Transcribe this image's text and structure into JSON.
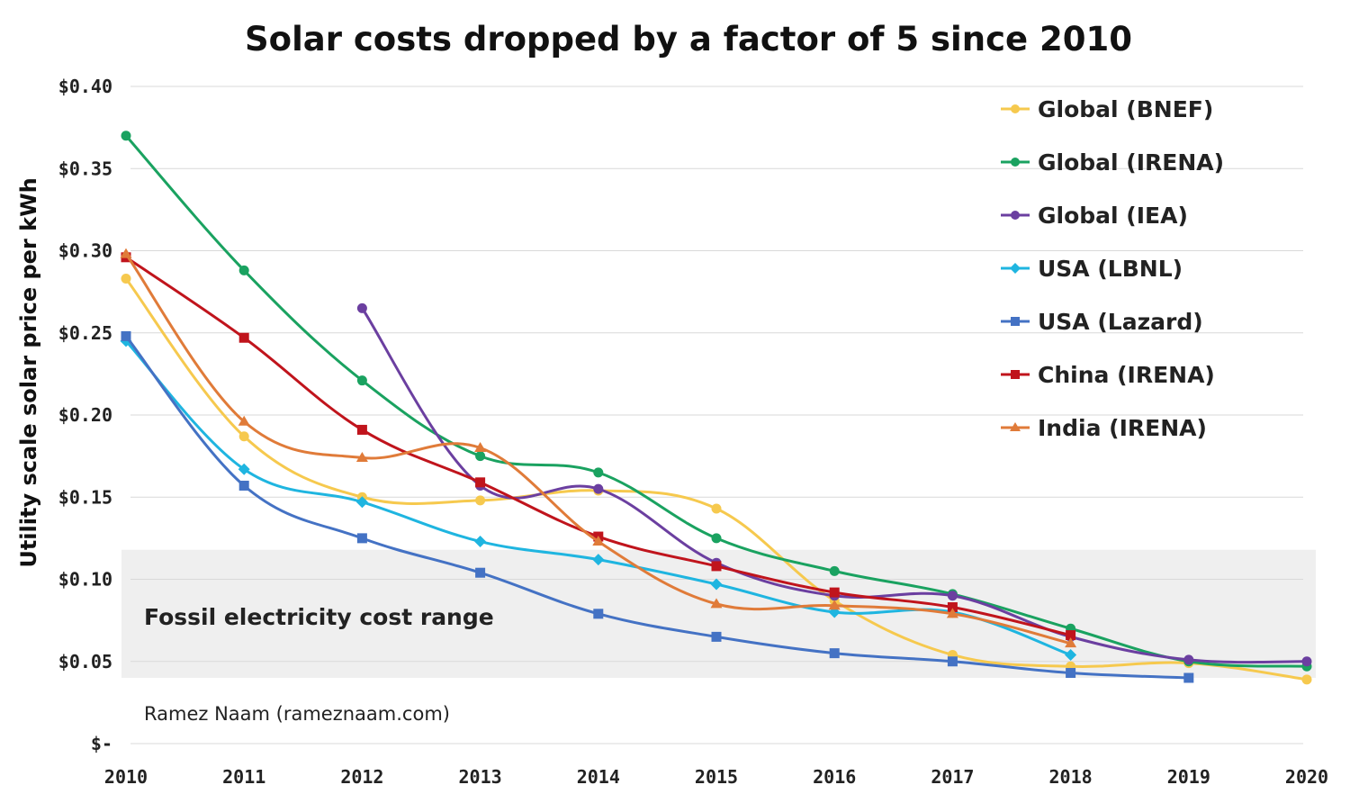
{
  "chart_data": {
    "type": "line",
    "title": "Solar costs dropped by a factor of 5 since 2010",
    "xlabel": "",
    "ylabel": "Utility scale solar price per kWh",
    "x": [
      2010,
      2011,
      2012,
      2013,
      2014,
      2015,
      2016,
      2017,
      2018,
      2019,
      2020
    ],
    "x_tick_labels": [
      "2010",
      "2011",
      "2012",
      "2013",
      "2014",
      "2015",
      "2016",
      "2017",
      "2018",
      "2019",
      "2020"
    ],
    "ylim": [
      0,
      0.4
    ],
    "y_ticks": [
      0,
      0.05,
      0.1,
      0.15,
      0.2,
      0.25,
      0.3,
      0.35,
      0.4
    ],
    "y_tick_labels": [
      "$-",
      "$0.05",
      "$0.10",
      "$0.15",
      "$0.20",
      "$0.25",
      "$0.30",
      "$0.35",
      "$0.40"
    ],
    "grid": true,
    "legend_position": "top-right",
    "shaded_band": {
      "label": "Fossil electricity cost range",
      "y_range": [
        0.04,
        0.118
      ]
    },
    "annotation": "Ramez Naam (rameznaam.com)",
    "series": [
      {
        "name": "Global (BNEF)",
        "color": "#f6c94e",
        "marker": "circle",
        "points": [
          [
            2010,
            0.283
          ],
          [
            2011,
            0.187
          ],
          [
            2012,
            0.15
          ],
          [
            2013,
            0.148
          ],
          [
            2014,
            0.154
          ],
          [
            2015,
            0.143
          ],
          [
            2016,
            0.087
          ],
          [
            2017,
            0.054
          ],
          [
            2018,
            0.047
          ],
          [
            2019,
            0.049
          ],
          [
            2020,
            0.039
          ]
        ]
      },
      {
        "name": "Global (IRENA)",
        "color": "#1aa260",
        "marker": "circle",
        "points": [
          [
            2010,
            0.37
          ],
          [
            2011,
            0.288
          ],
          [
            2012,
            0.221
          ],
          [
            2013,
            0.175
          ],
          [
            2014,
            0.165
          ],
          [
            2015,
            0.125
          ],
          [
            2016,
            0.105
          ],
          [
            2017,
            0.091
          ],
          [
            2018,
            0.07
          ],
          [
            2019,
            0.05
          ],
          [
            2020,
            0.047
          ]
        ]
      },
      {
        "name": "Global (IEA)",
        "color": "#6b3fa0",
        "marker": "circle",
        "points": [
          [
            2012,
            0.265
          ],
          [
            2013,
            0.157
          ],
          [
            2014,
            0.155
          ],
          [
            2015,
            0.11
          ],
          [
            2016,
            0.09
          ],
          [
            2017,
            0.09
          ],
          [
            2018,
            0.065
          ],
          [
            2019,
            0.051
          ],
          [
            2020,
            0.05
          ]
        ]
      },
      {
        "name": "USA (LBNL)",
        "color": "#1fb5e0",
        "marker": "diamond",
        "points": [
          [
            2010,
            0.245
          ],
          [
            2011,
            0.167
          ],
          [
            2012,
            0.147
          ],
          [
            2013,
            0.123
          ],
          [
            2014,
            0.112
          ],
          [
            2015,
            0.097
          ],
          [
            2016,
            0.08
          ],
          [
            2017,
            0.08
          ],
          [
            2018,
            0.054
          ]
        ]
      },
      {
        "name": "USA (Lazard)",
        "color": "#4472c4",
        "marker": "square",
        "points": [
          [
            2010,
            0.248
          ],
          [
            2011,
            0.157
          ],
          [
            2012,
            0.125
          ],
          [
            2013,
            0.104
          ],
          [
            2014,
            0.079
          ],
          [
            2015,
            0.065
          ],
          [
            2016,
            0.055
          ],
          [
            2017,
            0.05
          ],
          [
            2018,
            0.043
          ],
          [
            2019,
            0.04
          ]
        ]
      },
      {
        "name": "China (IRENA)",
        "color": "#c0141c",
        "marker": "square",
        "points": [
          [
            2010,
            0.296
          ],
          [
            2011,
            0.247
          ],
          [
            2012,
            0.191
          ],
          [
            2013,
            0.159
          ],
          [
            2014,
            0.126
          ],
          [
            2015,
            0.108
          ],
          [
            2016,
            0.092
          ],
          [
            2017,
            0.083
          ],
          [
            2018,
            0.066
          ]
        ]
      },
      {
        "name": "India (IRENA)",
        "color": "#e07b39",
        "marker": "triangle",
        "points": [
          [
            2010,
            0.298
          ],
          [
            2011,
            0.196
          ],
          [
            2012,
            0.174
          ],
          [
            2013,
            0.18
          ],
          [
            2014,
            0.123
          ],
          [
            2015,
            0.085
          ],
          [
            2016,
            0.084
          ],
          [
            2017,
            0.079
          ],
          [
            2018,
            0.061
          ]
        ]
      }
    ]
  }
}
